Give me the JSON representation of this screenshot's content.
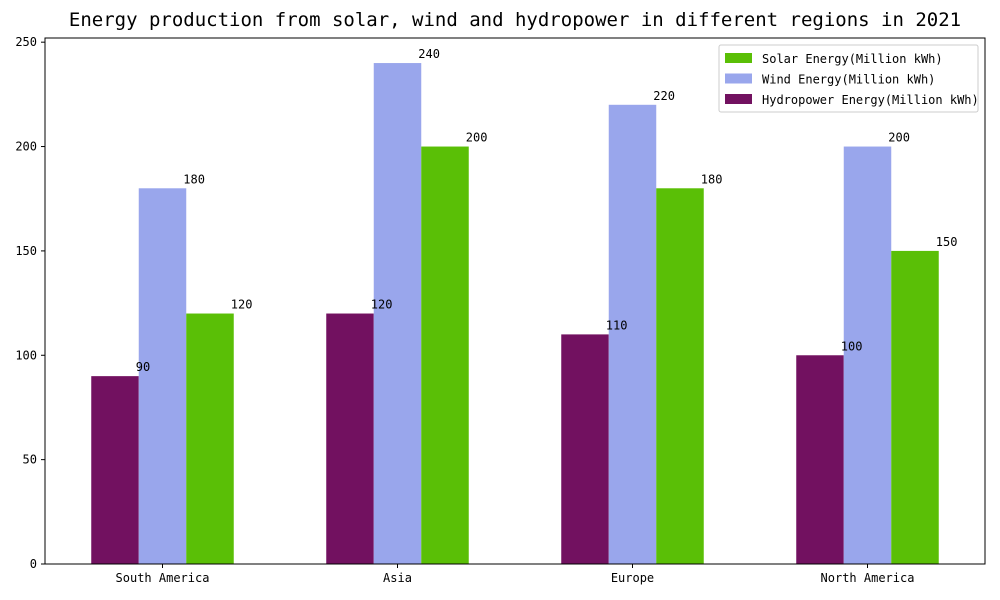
{
  "chart_data": {
    "type": "bar",
    "title": "Energy production from solar, wind and hydropower in different regions in 2021",
    "categories": [
      "South America",
      "Asia",
      "Europe",
      "North America"
    ],
    "series": [
      {
        "name": "Hydropower Energy(Million kWh)",
        "values": [
          90,
          120,
          110,
          100
        ],
        "color": "#721160"
      },
      {
        "name": "Wind Energy(Million kWh)",
        "values": [
          180,
          240,
          220,
          200
        ],
        "color": "#99a6ec"
      },
      {
        "name": "Solar Energy(Million kWh)",
        "values": [
          120,
          200,
          180,
          150
        ],
        "color": "#5abf06"
      }
    ],
    "legend_order": [
      2,
      1,
      0
    ],
    "ylim": [
      0,
      252
    ],
    "yticks": [
      0,
      50,
      100,
      150,
      200,
      250
    ],
    "grid": false,
    "legend_position": "top-right"
  }
}
